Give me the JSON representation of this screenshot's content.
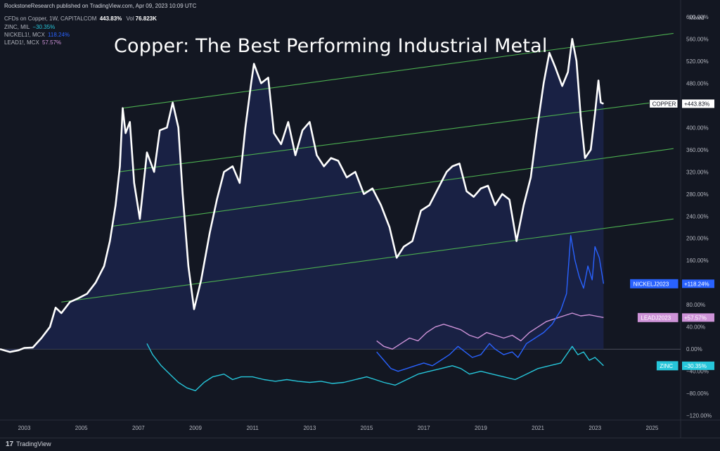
{
  "header": {
    "published": "RockstoneResearch published on TradingView.com, Apr 09, 2023 10:09 UTC"
  },
  "legend": {
    "main": {
      "name": "CFDs on Copper, 1W, CAPITALCOM",
      "value": "443.83%",
      "vol_label": "Vol",
      "vol_value": "76.823K"
    },
    "items": [
      {
        "name": "ZINC, MIL",
        "value": "−30.35%",
        "color": "#26c6da"
      },
      {
        "name": "NICKEL1!, MCX",
        "value": "118.24%",
        "color": "#2962ff"
      },
      {
        "name": "LEAD1!, MCX",
        "value": "57.57%",
        "color": "#ce93d8"
      }
    ]
  },
  "title": "Copper: The Best Performing Industrial Metal",
  "footer": {
    "brand": "TradingView"
  },
  "chart_data": {
    "type": "line",
    "scale_label": "Mixed",
    "y_unit": "%",
    "ylim": [
      -128,
      615
    ],
    "y_ticks": [
      "600.00%",
      "560.00%",
      "520.00%",
      "480.00%",
      "440.00%",
      "400.00%",
      "360.00%",
      "320.00%",
      "280.00%",
      "240.00%",
      "200.00%",
      "160.00%",
      "120.00%",
      "80.00%",
      "40.00%",
      "0.00%",
      "−40.00%",
      "−80.00%",
      "−120.00%"
    ],
    "y_tick_values": [
      600,
      560,
      520,
      480,
      440,
      400,
      360,
      320,
      280,
      240,
      200,
      160,
      120,
      80,
      40,
      0,
      -40,
      -80,
      -120
    ],
    "x_ticks": [
      "2003",
      "2005",
      "2007",
      "2009",
      "2011",
      "2013",
      "2015",
      "2017",
      "2019",
      "2021",
      "2023",
      "2025"
    ],
    "x_tick_values": [
      2003,
      2005,
      2007,
      2009,
      2011,
      2013,
      2015,
      2017,
      2019,
      2021,
      2023,
      2025
    ],
    "xlim": [
      2002.15,
      2026.0
    ],
    "series": [
      {
        "name": "COPPER",
        "label": "+443.83%",
        "color": "#ffffff",
        "points": [
          [
            2002.15,
            0
          ],
          [
            2002.5,
            -5
          ],
          [
            2002.8,
            -2
          ],
          [
            2003.0,
            2
          ],
          [
            2003.3,
            3
          ],
          [
            2003.6,
            20
          ],
          [
            2003.9,
            40
          ],
          [
            2004.1,
            75
          ],
          [
            2004.3,
            65
          ],
          [
            2004.6,
            85
          ],
          [
            2004.9,
            92
          ],
          [
            2005.2,
            100
          ],
          [
            2005.5,
            120
          ],
          [
            2005.8,
            150
          ],
          [
            2006.0,
            195
          ],
          [
            2006.2,
            260
          ],
          [
            2006.35,
            330
          ],
          [
            2006.45,
            435
          ],
          [
            2006.55,
            390
          ],
          [
            2006.7,
            410
          ],
          [
            2006.85,
            300
          ],
          [
            2007.05,
            235
          ],
          [
            2007.3,
            355
          ],
          [
            2007.55,
            320
          ],
          [
            2007.75,
            395
          ],
          [
            2008.0,
            400
          ],
          [
            2008.2,
            445
          ],
          [
            2008.4,
            400
          ],
          [
            2008.55,
            280
          ],
          [
            2008.75,
            150
          ],
          [
            2008.95,
            72
          ],
          [
            2009.2,
            125
          ],
          [
            2009.5,
            210
          ],
          [
            2009.75,
            270
          ],
          [
            2010.0,
            320
          ],
          [
            2010.3,
            330
          ],
          [
            2010.55,
            300
          ],
          [
            2010.75,
            400
          ],
          [
            2010.95,
            480
          ],
          [
            2011.05,
            515
          ],
          [
            2011.3,
            480
          ],
          [
            2011.55,
            490
          ],
          [
            2011.75,
            390
          ],
          [
            2012.0,
            370
          ],
          [
            2012.25,
            410
          ],
          [
            2012.5,
            350
          ],
          [
            2012.75,
            395
          ],
          [
            2013.0,
            410
          ],
          [
            2013.25,
            350
          ],
          [
            2013.5,
            330
          ],
          [
            2013.75,
            345
          ],
          [
            2014.0,
            340
          ],
          [
            2014.3,
            310
          ],
          [
            2014.6,
            320
          ],
          [
            2014.9,
            280
          ],
          [
            2015.2,
            290
          ],
          [
            2015.5,
            260
          ],
          [
            2015.8,
            220
          ],
          [
            2016.05,
            165
          ],
          [
            2016.3,
            185
          ],
          [
            2016.6,
            195
          ],
          [
            2016.9,
            250
          ],
          [
            2017.2,
            260
          ],
          [
            2017.5,
            290
          ],
          [
            2017.8,
            320
          ],
          [
            2018.0,
            330
          ],
          [
            2018.25,
            335
          ],
          [
            2018.5,
            285
          ],
          [
            2018.75,
            275
          ],
          [
            2019.0,
            290
          ],
          [
            2019.25,
            295
          ],
          [
            2019.5,
            260
          ],
          [
            2019.75,
            280
          ],
          [
            2020.0,
            270
          ],
          [
            2020.25,
            195
          ],
          [
            2020.5,
            260
          ],
          [
            2020.75,
            310
          ],
          [
            2020.95,
            390
          ],
          [
            2021.2,
            480
          ],
          [
            2021.4,
            535
          ],
          [
            2021.6,
            510
          ],
          [
            2021.85,
            475
          ],
          [
            2022.05,
            500
          ],
          [
            2022.2,
            560
          ],
          [
            2022.35,
            520
          ],
          [
            2022.5,
            420
          ],
          [
            2022.65,
            345
          ],
          [
            2022.85,
            360
          ],
          [
            2023.0,
            425
          ],
          [
            2023.12,
            485
          ],
          [
            2023.2,
            445
          ],
          [
            2023.3,
            443
          ]
        ]
      },
      {
        "name": "NICKELJ2023",
        "label": "+118.24%",
        "color": "#2962ff",
        "points": [
          [
            2015.35,
            -5
          ],
          [
            2015.6,
            -20
          ],
          [
            2015.85,
            -35
          ],
          [
            2016.1,
            -40
          ],
          [
            2016.4,
            -35
          ],
          [
            2016.7,
            -30
          ],
          [
            2017.0,
            -25
          ],
          [
            2017.3,
            -30
          ],
          [
            2017.6,
            -20
          ],
          [
            2017.9,
            -10
          ],
          [
            2018.2,
            5
          ],
          [
            2018.45,
            -5
          ],
          [
            2018.7,
            -15
          ],
          [
            2019.0,
            -10
          ],
          [
            2019.3,
            10
          ],
          [
            2019.5,
            0
          ],
          [
            2019.8,
            -10
          ],
          [
            2020.1,
            -5
          ],
          [
            2020.3,
            -15
          ],
          [
            2020.6,
            10
          ],
          [
            2020.9,
            20
          ],
          [
            2021.2,
            30
          ],
          [
            2021.5,
            45
          ],
          [
            2021.8,
            70
          ],
          [
            2022.0,
            100
          ],
          [
            2022.15,
            205
          ],
          [
            2022.3,
            160
          ],
          [
            2022.45,
            130
          ],
          [
            2022.6,
            110
          ],
          [
            2022.75,
            150
          ],
          [
            2022.9,
            125
          ],
          [
            2023.0,
            185
          ],
          [
            2023.15,
            165
          ],
          [
            2023.3,
            118
          ]
        ]
      },
      {
        "name": "LEADJ2023",
        "label": "+57.57%",
        "color": "#ce93d8",
        "points": [
          [
            2015.35,
            15
          ],
          [
            2015.6,
            5
          ],
          [
            2015.9,
            0
          ],
          [
            2016.2,
            10
          ],
          [
            2016.5,
            20
          ],
          [
            2016.8,
            15
          ],
          [
            2017.1,
            30
          ],
          [
            2017.4,
            40
          ],
          [
            2017.7,
            45
          ],
          [
            2018.0,
            40
          ],
          [
            2018.3,
            35
          ],
          [
            2018.6,
            25
          ],
          [
            2018.9,
            20
          ],
          [
            2019.2,
            30
          ],
          [
            2019.5,
            25
          ],
          [
            2019.8,
            20
          ],
          [
            2020.1,
            25
          ],
          [
            2020.4,
            15
          ],
          [
            2020.7,
            30
          ],
          [
            2021.0,
            40
          ],
          [
            2021.3,
            50
          ],
          [
            2021.6,
            55
          ],
          [
            2021.9,
            60
          ],
          [
            2022.2,
            65
          ],
          [
            2022.5,
            60
          ],
          [
            2022.8,
            62
          ],
          [
            2023.0,
            60
          ],
          [
            2023.3,
            57
          ]
        ]
      },
      {
        "name": "ZINC",
        "label": "−30.35%",
        "color": "#26c6da",
        "points": [
          [
            2007.3,
            10
          ],
          [
            2007.5,
            -10
          ],
          [
            2007.8,
            -30
          ],
          [
            2008.1,
            -45
          ],
          [
            2008.4,
            -60
          ],
          [
            2008.7,
            -70
          ],
          [
            2009.0,
            -75
          ],
          [
            2009.3,
            -60
          ],
          [
            2009.6,
            -50
          ],
          [
            2010.0,
            -45
          ],
          [
            2010.3,
            -55
          ],
          [
            2010.6,
            -50
          ],
          [
            2011.0,
            -50
          ],
          [
            2011.4,
            -55
          ],
          [
            2011.8,
            -58
          ],
          [
            2012.2,
            -55
          ],
          [
            2012.6,
            -58
          ],
          [
            2013.0,
            -60
          ],
          [
            2013.4,
            -58
          ],
          [
            2013.8,
            -62
          ],
          [
            2014.2,
            -60
          ],
          [
            2014.6,
            -55
          ],
          [
            2015.0,
            -50
          ],
          [
            2015.3,
            -55
          ],
          [
            2015.6,
            -60
          ],
          [
            2016.0,
            -65
          ],
          [
            2016.4,
            -55
          ],
          [
            2016.8,
            -45
          ],
          [
            2017.2,
            -40
          ],
          [
            2017.6,
            -35
          ],
          [
            2018.0,
            -30
          ],
          [
            2018.3,
            -35
          ],
          [
            2018.6,
            -45
          ],
          [
            2019.0,
            -40
          ],
          [
            2019.4,
            -45
          ],
          [
            2019.8,
            -50
          ],
          [
            2020.2,
            -55
          ],
          [
            2020.6,
            -45
          ],
          [
            2021.0,
            -35
          ],
          [
            2021.4,
            -30
          ],
          [
            2021.8,
            -25
          ],
          [
            2022.0,
            -10
          ],
          [
            2022.2,
            5
          ],
          [
            2022.4,
            -10
          ],
          [
            2022.6,
            -5
          ],
          [
            2022.8,
            -20
          ],
          [
            2023.0,
            -15
          ],
          [
            2023.3,
            -30
          ]
        ]
      }
    ],
    "channel_lines": [
      {
        "x": [
          2006.45,
          2025.75
        ],
        "y": [
          435,
          570
        ]
      },
      {
        "x": [
          2006.3,
          2025.75
        ],
        "y": [
          320,
          450
        ]
      },
      {
        "x": [
          2006.1,
          2025.75
        ],
        "y": [
          222,
          362
        ]
      },
      {
        "x": [
          2004.3,
          2025.75
        ],
        "y": [
          85,
          235
        ]
      }
    ],
    "channel_color": "#4caf50",
    "copper_fill": "#1c2650",
    "zero_line": 0
  }
}
